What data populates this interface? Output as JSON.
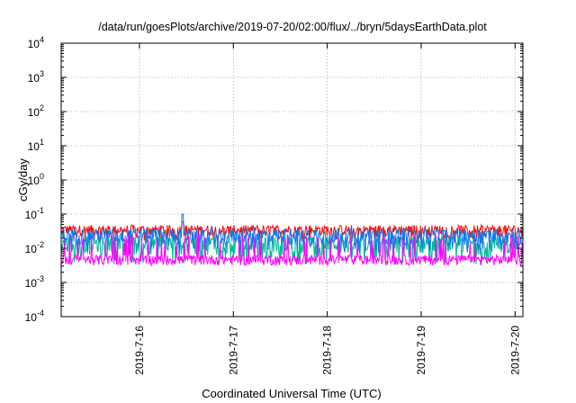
{
  "chart_data": {
    "type": "line",
    "title": "/data/run/goesPlots/archive/2019-07-20/02:00/flux/../bryn/5daysEarthData.plot",
    "xlabel": "Coordinated Universal Time (UTC)",
    "ylabel": "cGy/day",
    "x_range": [
      "2019-07-15T04:00",
      "2019-07-20T02:00"
    ],
    "x_ticks": [
      {
        "label": "2019-7-16",
        "date": "2019-07-16"
      },
      {
        "label": "2019-7-17",
        "date": "2019-07-17"
      },
      {
        "label": "2019-7-18",
        "date": "2019-07-18"
      },
      {
        "label": "2019-7-19",
        "date": "2019-07-19"
      },
      {
        "label": "2019-7-20",
        "date": "2019-07-20"
      }
    ],
    "y_scale": "log",
    "ylim": [
      0.0001,
      10000
    ],
    "y_ticks": [
      {
        "base": "10",
        "exp": "4"
      },
      {
        "base": "10",
        "exp": "3"
      },
      {
        "base": "10",
        "exp": "2"
      },
      {
        "base": "10",
        "exp": "1"
      },
      {
        "base": "10",
        "exp": "0"
      },
      {
        "base": "10",
        "exp": "-1"
      },
      {
        "base": "10",
        "exp": "-2"
      },
      {
        "base": "10",
        "exp": "-3"
      },
      {
        "base": "10",
        "exp": "-4"
      }
    ],
    "grid": true,
    "series": [
      {
        "color": "#ee1111",
        "level": 0.03,
        "noise_low": 0.75,
        "noise_high": 1.6,
        "dip": 0.8,
        "spike": {
          "date": "2019-07-16T11:00",
          "value": 0.06
        }
      },
      {
        "color": "#00bb99",
        "level": 0.016,
        "noise_low": 0.4,
        "noise_high": 1.4,
        "dip": 0.35
      },
      {
        "color": "#1177ee",
        "level": 0.025,
        "noise_low": 0.5,
        "noise_high": 1.5,
        "dip": 0.5,
        "spike": {
          "date": "2019-07-16T11:00",
          "value": 0.1
        }
      },
      {
        "color": "#ff00ff",
        "level": 0.0045,
        "noise_low": 0.7,
        "noise_high": 1.4,
        "burst": 0.02
      }
    ]
  }
}
